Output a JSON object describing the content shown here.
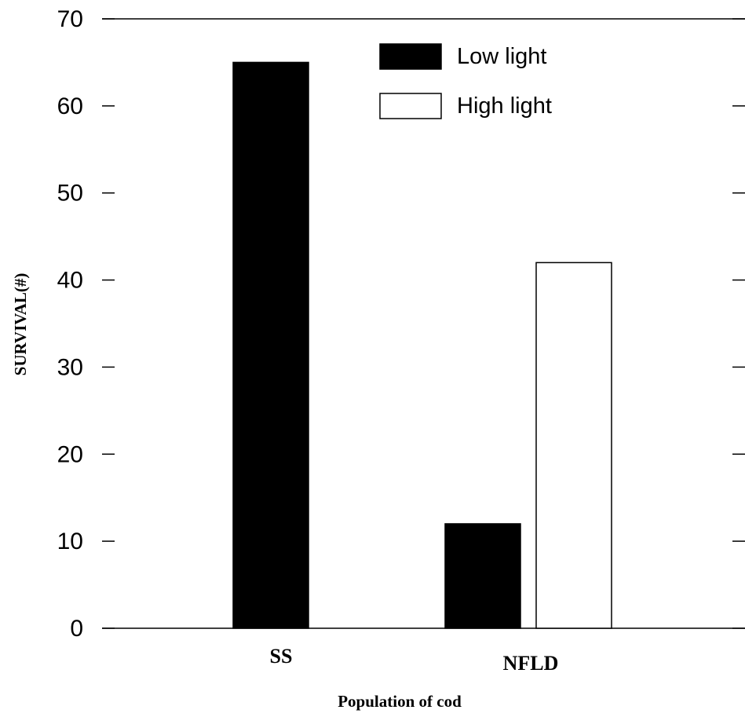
{
  "chart_data": {
    "type": "bar",
    "title": "",
    "xlabel": "Population of cod",
    "ylabel": "SURVIVAL(#)",
    "ylim": [
      0,
      70
    ],
    "yticks": [
      0,
      10,
      20,
      30,
      40,
      50,
      60,
      70
    ],
    "categories": [
      "SS",
      "NFLD"
    ],
    "series": [
      {
        "name": "Low light",
        "values": [
          65,
          12
        ],
        "color": "#000000"
      },
      {
        "name": "High light",
        "values": [
          0,
          42
        ],
        "color": "#ffffff"
      }
    ],
    "legend": {
      "position": "top-right"
    },
    "grid": false
  }
}
